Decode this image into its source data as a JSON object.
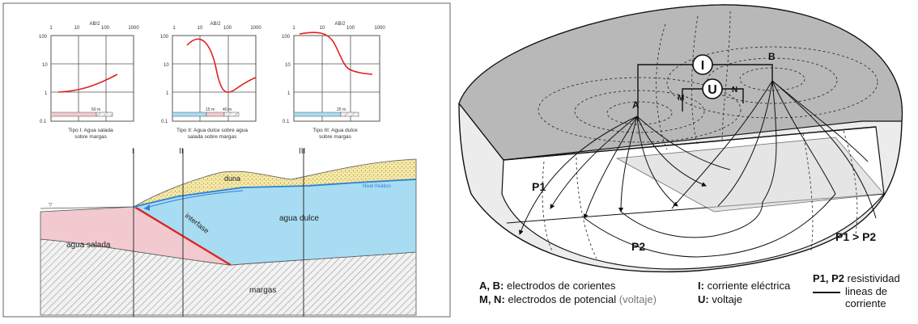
{
  "left": {
    "graphs": [
      {
        "top_ticks": [
          "1",
          "10",
          "AB/2",
          "100",
          "1000"
        ],
        "y_ticks": [
          "100",
          "10",
          "1",
          "0.1"
        ],
        "strip_label": "60 m",
        "caption": [
          "Tipo I: Agua salada",
          "sobre margas"
        ]
      },
      {
        "top_ticks": [
          "1",
          "10",
          "AB/2",
          "100",
          "1000"
        ],
        "y_ticks": [
          "100",
          "10",
          "1",
          "0.1"
        ],
        "strip_labels": [
          "15 m",
          "40 m"
        ],
        "caption": [
          "Tipo II: Agua dulce sobre agua",
          "salada sobre margas"
        ]
      },
      {
        "top_ticks": [
          "1",
          "10",
          "AB/2",
          "100",
          "1000"
        ],
        "y_ticks": [
          "100",
          "10",
          "1",
          "0.1"
        ],
        "strip_label": "25 m",
        "caption": [
          "Tipo III: Agua dulce",
          "sobre margas"
        ]
      }
    ],
    "section": {
      "markers": [
        "I",
        "II",
        "III"
      ],
      "labels": {
        "duna": "duna",
        "nivel": "Nivel freático",
        "dulce": "agua dulce",
        "salada": "agua salada",
        "interfase": "interfase",
        "margas": "margas"
      }
    }
  },
  "right": {
    "instruments": {
      "current": "I",
      "voltage": "U"
    },
    "electrodes": [
      "A",
      "M",
      "N",
      "B"
    ],
    "layers": {
      "p1": "P1",
      "p2": "P2",
      "compare": "P1 > P2"
    },
    "legend": {
      "ab_key": "A, B:",
      "ab_text": "electrodos de corientes",
      "mn_key": "M, N:",
      "mn_text": "electrodos de potencial",
      "mn_note": "(voltaje)",
      "i_key": "I:",
      "i_text": "corriente eléctrica",
      "u_key": "U:",
      "u_text": "voltaje",
      "p_key": "P1, P2",
      "p_text": "resistividad",
      "line_text1": "lineas de",
      "line_text2": "corriente"
    }
  },
  "colors": {
    "water_fresh": "#a8dcf2",
    "water_salt": "#f1c9cf",
    "sand": "#f4e7a6",
    "curve": "#e02020",
    "interface": "#e02020",
    "blue_line": "#2d7fd8"
  }
}
